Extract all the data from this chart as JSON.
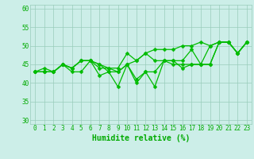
{
  "xlabel": "Humidite relative (%)",
  "ylabel": "",
  "xlim": [
    -0.5,
    23.5
  ],
  "ylim": [
    29,
    61
  ],
  "yticks": [
    30,
    35,
    40,
    45,
    50,
    55,
    60
  ],
  "xticks": [
    0,
    1,
    2,
    3,
    4,
    5,
    6,
    7,
    8,
    9,
    10,
    11,
    12,
    13,
    14,
    15,
    16,
    17,
    18,
    19,
    20,
    21,
    22,
    23
  ],
  "bg_color": "#cceee8",
  "grid_color": "#99ccbb",
  "line_color": "#00bb00",
  "marker_color": "#00bb00",
  "series": [
    [
      43,
      44,
      43,
      45,
      43,
      43,
      46,
      42,
      43,
      43,
      45,
      41,
      43,
      43,
      46,
      46,
      46,
      49,
      45,
      45,
      51,
      51,
      48,
      51
    ],
    [
      43,
      43,
      43,
      45,
      44,
      46,
      46,
      45,
      43,
      39,
      45,
      40,
      43,
      39,
      46,
      46,
      44,
      45,
      45,
      45,
      51,
      51,
      48,
      51
    ],
    [
      43,
      43,
      43,
      45,
      44,
      46,
      46,
      45,
      44,
      43,
      45,
      46,
      48,
      46,
      46,
      45,
      45,
      45,
      45,
      50,
      51,
      51,
      48,
      51
    ],
    [
      43,
      43,
      43,
      45,
      44,
      46,
      46,
      44,
      44,
      44,
      48,
      46,
      48,
      49,
      49,
      49,
      50,
      50,
      51,
      50,
      51,
      51,
      48,
      51
    ]
  ],
  "font_color": "#00aa00",
  "tick_fontsize": 5.5,
  "xlabel_fontsize": 7,
  "linewidth": 0.9,
  "markersize": 2.5
}
